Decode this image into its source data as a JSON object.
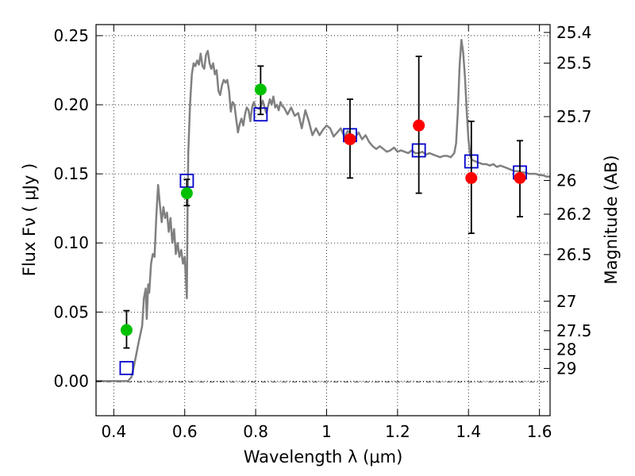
{
  "chart_data": {
    "type": "scatter",
    "title": "",
    "xlabel": "Wavelength  λ (μm)",
    "ylabel": "Flux  Fν  ( μJy )",
    "y2label": "Magnitude (AB)",
    "xlim": [
      0.35,
      1.63
    ],
    "ylim": [
      -0.025,
      0.258
    ],
    "grid": true,
    "x_ticks": [
      0.4,
      0.6,
      0.8,
      1.0,
      1.2,
      1.4,
      1.6
    ],
    "x_tick_labels": [
      "0.4",
      "0.6",
      "0.8",
      "1",
      "1.2",
      "1.4",
      "1.6"
    ],
    "y_ticks": [
      0.0,
      0.05,
      0.1,
      0.15,
      0.2,
      0.25
    ],
    "y_tick_labels": [
      "0.00",
      "0.05",
      "0.10",
      "0.15",
      "0.20",
      "0.25"
    ],
    "y2_ticks": [
      {
        "label": "25.4",
        "flux": 0.2523
      },
      {
        "label": "25.5",
        "flux": 0.2301
      },
      {
        "label": "25.7",
        "flux": 0.1914
      },
      {
        "label": "26",
        "flux": 0.1452
      },
      {
        "label": "26.2",
        "flux": 0.1208
      },
      {
        "label": "26.5",
        "flux": 0.0916
      },
      {
        "label": "27",
        "flux": 0.0578
      },
      {
        "label": "27.5",
        "flux": 0.0365
      },
      {
        "label": "28",
        "flux": 0.023
      },
      {
        "label": "29",
        "flux": 0.0092
      }
    ],
    "series": [
      {
        "type": "line",
        "color": "#808080",
        "points": [
          [
            0.35,
            0.0
          ],
          [
            0.4,
            0.0
          ],
          [
            0.44,
            0.0
          ],
          [
            0.45,
            0.003
          ],
          [
            0.46,
            0.015
          ],
          [
            0.47,
            0.028
          ],
          [
            0.48,
            0.04
          ],
          [
            0.485,
            0.06
          ],
          [
            0.49,
            0.067
          ],
          [
            0.493,
            0.045
          ],
          [
            0.497,
            0.07
          ],
          [
            0.5,
            0.064
          ],
          [
            0.505,
            0.085
          ],
          [
            0.51,
            0.092
          ],
          [
            0.515,
            0.09
          ],
          [
            0.52,
            0.12
          ],
          [
            0.525,
            0.142
          ],
          [
            0.53,
            0.128
          ],
          [
            0.535,
            0.115
          ],
          [
            0.54,
            0.126
          ],
          [
            0.545,
            0.118
          ],
          [
            0.55,
            0.122
          ],
          [
            0.555,
            0.108
          ],
          [
            0.56,
            0.118
          ],
          [
            0.565,
            0.1
          ],
          [
            0.57,
            0.11
          ],
          [
            0.575,
            0.092
          ],
          [
            0.58,
            0.1
          ],
          [
            0.585,
            0.09
          ],
          [
            0.59,
            0.095
          ],
          [
            0.595,
            0.085
          ],
          [
            0.6,
            0.09
          ],
          [
            0.603,
            0.075
          ],
          [
            0.606,
            0.06
          ],
          [
            0.608,
            0.125
          ],
          [
            0.61,
            0.165
          ],
          [
            0.615,
            0.2
          ],
          [
            0.62,
            0.222
          ],
          [
            0.625,
            0.23
          ],
          [
            0.63,
            0.228
          ],
          [
            0.635,
            0.232
          ],
          [
            0.64,
            0.229
          ],
          [
            0.645,
            0.237
          ],
          [
            0.65,
            0.228
          ],
          [
            0.655,
            0.226
          ],
          [
            0.66,
            0.236
          ],
          [
            0.665,
            0.239
          ],
          [
            0.67,
            0.23
          ],
          [
            0.675,
            0.226
          ],
          [
            0.68,
            0.23
          ],
          [
            0.685,
            0.222
          ],
          [
            0.69,
            0.225
          ],
          [
            0.695,
            0.21
          ],
          [
            0.7,
            0.207
          ],
          [
            0.705,
            0.214
          ],
          [
            0.71,
            0.218
          ],
          [
            0.715,
            0.216
          ],
          [
            0.72,
            0.218
          ],
          [
            0.725,
            0.21
          ],
          [
            0.73,
            0.195
          ],
          [
            0.735,
            0.202
          ],
          [
            0.74,
            0.2
          ],
          [
            0.745,
            0.19
          ],
          [
            0.75,
            0.18
          ],
          [
            0.755,
            0.186
          ],
          [
            0.76,
            0.19
          ],
          [
            0.765,
            0.185
          ],
          [
            0.77,
            0.193
          ],
          [
            0.775,
            0.198
          ],
          [
            0.78,
            0.196
          ],
          [
            0.785,
            0.188
          ],
          [
            0.79,
            0.198
          ],
          [
            0.795,
            0.202
          ],
          [
            0.8,
            0.198
          ],
          [
            0.81,
            0.197
          ],
          [
            0.815,
            0.199
          ],
          [
            0.82,
            0.203
          ],
          [
            0.825,
            0.198
          ],
          [
            0.83,
            0.194
          ],
          [
            0.835,
            0.199
          ],
          [
            0.84,
            0.204
          ],
          [
            0.845,
            0.2
          ],
          [
            0.85,
            0.206
          ],
          [
            0.855,
            0.198
          ],
          [
            0.86,
            0.2
          ],
          [
            0.865,
            0.196
          ],
          [
            0.87,
            0.202
          ],
          [
            0.875,
            0.199
          ],
          [
            0.88,
            0.198
          ],
          [
            0.89,
            0.193
          ],
          [
            0.9,
            0.198
          ],
          [
            0.91,
            0.192
          ],
          [
            0.92,
            0.194
          ],
          [
            0.93,
            0.183
          ],
          [
            0.94,
            0.196
          ],
          [
            0.95,
            0.188
          ],
          [
            0.96,
            0.178
          ],
          [
            0.97,
            0.183
          ],
          [
            0.98,
            0.178
          ],
          [
            0.99,
            0.182
          ],
          [
            1.0,
            0.185
          ],
          [
            1.01,
            0.183
          ],
          [
            1.02,
            0.177
          ],
          [
            1.03,
            0.18
          ],
          [
            1.04,
            0.183
          ],
          [
            1.05,
            0.177
          ],
          [
            1.06,
            0.181
          ],
          [
            1.07,
            0.178
          ],
          [
            1.08,
            0.176
          ],
          [
            1.09,
            0.18
          ],
          [
            1.1,
            0.175
          ],
          [
            1.11,
            0.178
          ],
          [
            1.12,
            0.173
          ],
          [
            1.13,
            0.17
          ],
          [
            1.14,
            0.168
          ],
          [
            1.15,
            0.17
          ],
          [
            1.16,
            0.168
          ],
          [
            1.17,
            0.166
          ],
          [
            1.18,
            0.167
          ],
          [
            1.19,
            0.169
          ],
          [
            1.2,
            0.166
          ],
          [
            1.21,
            0.167
          ],
          [
            1.22,
            0.166
          ],
          [
            1.23,
            0.165
          ],
          [
            1.24,
            0.167
          ],
          [
            1.25,
            0.165
          ],
          [
            1.26,
            0.165
          ],
          [
            1.27,
            0.166
          ],
          [
            1.28,
            0.164
          ],
          [
            1.29,
            0.165
          ],
          [
            1.3,
            0.164
          ],
          [
            1.31,
            0.163
          ],
          [
            1.32,
            0.162
          ],
          [
            1.33,
            0.163
          ],
          [
            1.34,
            0.163
          ],
          [
            1.35,
            0.162
          ],
          [
            1.36,
            0.165
          ],
          [
            1.365,
            0.172
          ],
          [
            1.37,
            0.195
          ],
          [
            1.375,
            0.228
          ],
          [
            1.38,
            0.247
          ],
          [
            1.385,
            0.238
          ],
          [
            1.39,
            0.22
          ],
          [
            1.395,
            0.195
          ],
          [
            1.4,
            0.175
          ],
          [
            1.405,
            0.163
          ],
          [
            1.41,
            0.16
          ],
          [
            1.42,
            0.159
          ],
          [
            1.43,
            0.158
          ],
          [
            1.44,
            0.157
          ],
          [
            1.45,
            0.157
          ],
          [
            1.46,
            0.156
          ],
          [
            1.47,
            0.157
          ],
          [
            1.48,
            0.155
          ],
          [
            1.49,
            0.156
          ],
          [
            1.5,
            0.155
          ],
          [
            1.51,
            0.154
          ],
          [
            1.52,
            0.153
          ],
          [
            1.53,
            0.152
          ],
          [
            1.54,
            0.152
          ],
          [
            1.55,
            0.151
          ],
          [
            1.56,
            0.151
          ],
          [
            1.57,
            0.15
          ],
          [
            1.58,
            0.15
          ],
          [
            1.59,
            0.15
          ],
          [
            1.6,
            0.149
          ],
          [
            1.61,
            0.149
          ],
          [
            1.62,
            0.148
          ],
          [
            1.63,
            0.148
          ]
        ]
      },
      {
        "type": "scatter",
        "marker": "circle",
        "color": "#00c000",
        "points": [
          {
            "x": 0.436,
            "y": 0.037,
            "yerr_low": 0.024,
            "yerr_high": 0.051
          },
          {
            "x": 0.606,
            "y": 0.136,
            "yerr_low": 0.127,
            "yerr_high": 0.146
          },
          {
            "x": 0.814,
            "y": 0.211,
            "yerr_low": 0.193,
            "yerr_high": 0.228
          }
        ]
      },
      {
        "type": "scatter",
        "marker": "circle",
        "color": "#ff0000",
        "points": [
          {
            "x": 1.066,
            "y": 0.175,
            "yerr_low": 0.147,
            "yerr_high": 0.204
          },
          {
            "x": 1.26,
            "y": 0.185,
            "yerr_low": 0.136,
            "yerr_high": 0.235
          },
          {
            "x": 1.408,
            "y": 0.147,
            "yerr_low": 0.107,
            "yerr_high": 0.188
          },
          {
            "x": 1.545,
            "y": 0.147,
            "yerr_low": 0.119,
            "yerr_high": 0.174
          }
        ]
      },
      {
        "type": "scatter",
        "marker": "open-square",
        "color": "#0000cc",
        "points": [
          {
            "x": 0.436,
            "y": 0.0095
          },
          {
            "x": 0.606,
            "y": 0.145
          },
          {
            "x": 0.814,
            "y": 0.193
          },
          {
            "x": 1.066,
            "y": 0.178
          },
          {
            "x": 1.26,
            "y": 0.167
          },
          {
            "x": 1.408,
            "y": 0.159
          },
          {
            "x": 1.545,
            "y": 0.151
          }
        ]
      }
    ]
  }
}
